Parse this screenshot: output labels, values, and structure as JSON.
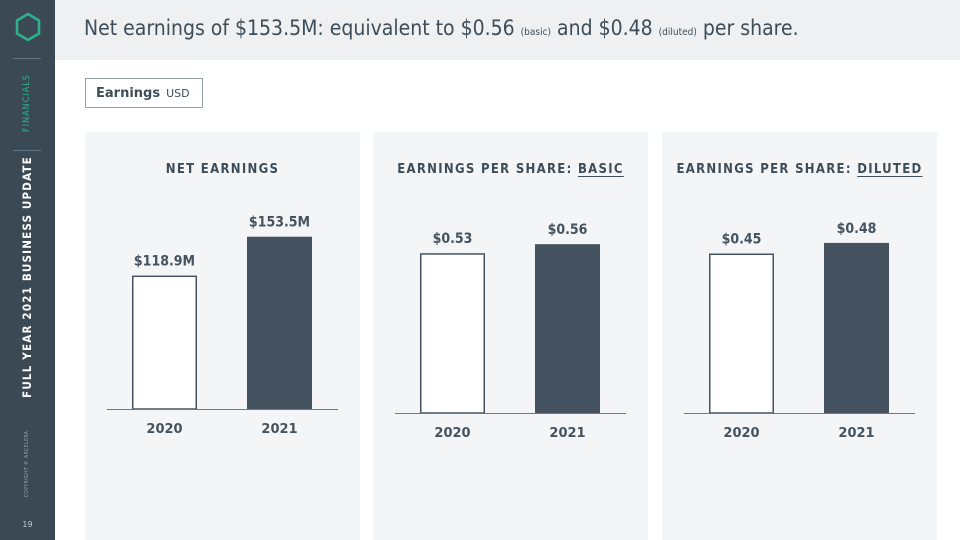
{
  "sidebar": {
    "section": "FINANCIALS",
    "deck_title": "FULL YEAR 2021 BUSINESS UPDATE",
    "copyright": "COPYRIGHT © ARCELERA",
    "page_number": "19",
    "logo_icon": "hexagon-logo-icon"
  },
  "header": {
    "headline_part1": "Net earnings of $153.5M: equivalent to $0.56",
    "basic_note": "(basic)",
    "headline_part2": "and $0.48",
    "diluted_note": "(diluted)",
    "headline_part3": "per share."
  },
  "legend": {
    "label": "Earnings",
    "unit": "USD"
  },
  "colors": {
    "accent": "#2fb08d",
    "sidebar": "#3b4955",
    "bar_2021": "#44535f",
    "bar_2020_stroke": "#44535f",
    "panel_bg": "#f4f5f6"
  },
  "panels": [
    {
      "title": "NET EARNINGS",
      "title_underlined": ""
    },
    {
      "title": "EARNINGS PER SHARE: ",
      "title_underlined": "BASIC"
    },
    {
      "title": "EARNINGS PER SHARE: ",
      "title_underlined": "DILUTED"
    }
  ],
  "chart_data": [
    {
      "type": "bar",
      "title": "NET EARNINGS",
      "categories": [
        "2020",
        "2021"
      ],
      "values": [
        118.9,
        153.5
      ],
      "labels": [
        "$118.9M",
        "$153.5M"
      ],
      "unit": "USD millions",
      "ylim": [
        0,
        180
      ],
      "grid": false
    },
    {
      "type": "bar",
      "title": "EARNINGS PER SHARE: BASIC",
      "categories": [
        "2020",
        "2021"
      ],
      "values": [
        0.53,
        0.56
      ],
      "labels": [
        "$0.53",
        "$0.56"
      ],
      "unit": "USD",
      "ylim": [
        0,
        0.67
      ],
      "grid": false
    },
    {
      "type": "bar",
      "title": "EARNINGS PER SHARE: DILUTED",
      "categories": [
        "2020",
        "2021"
      ],
      "values": [
        0.45,
        0.48
      ],
      "labels": [
        "$0.45",
        "$0.48"
      ],
      "unit": "USD",
      "ylim": [
        0,
        0.57
      ],
      "grid": false
    }
  ]
}
